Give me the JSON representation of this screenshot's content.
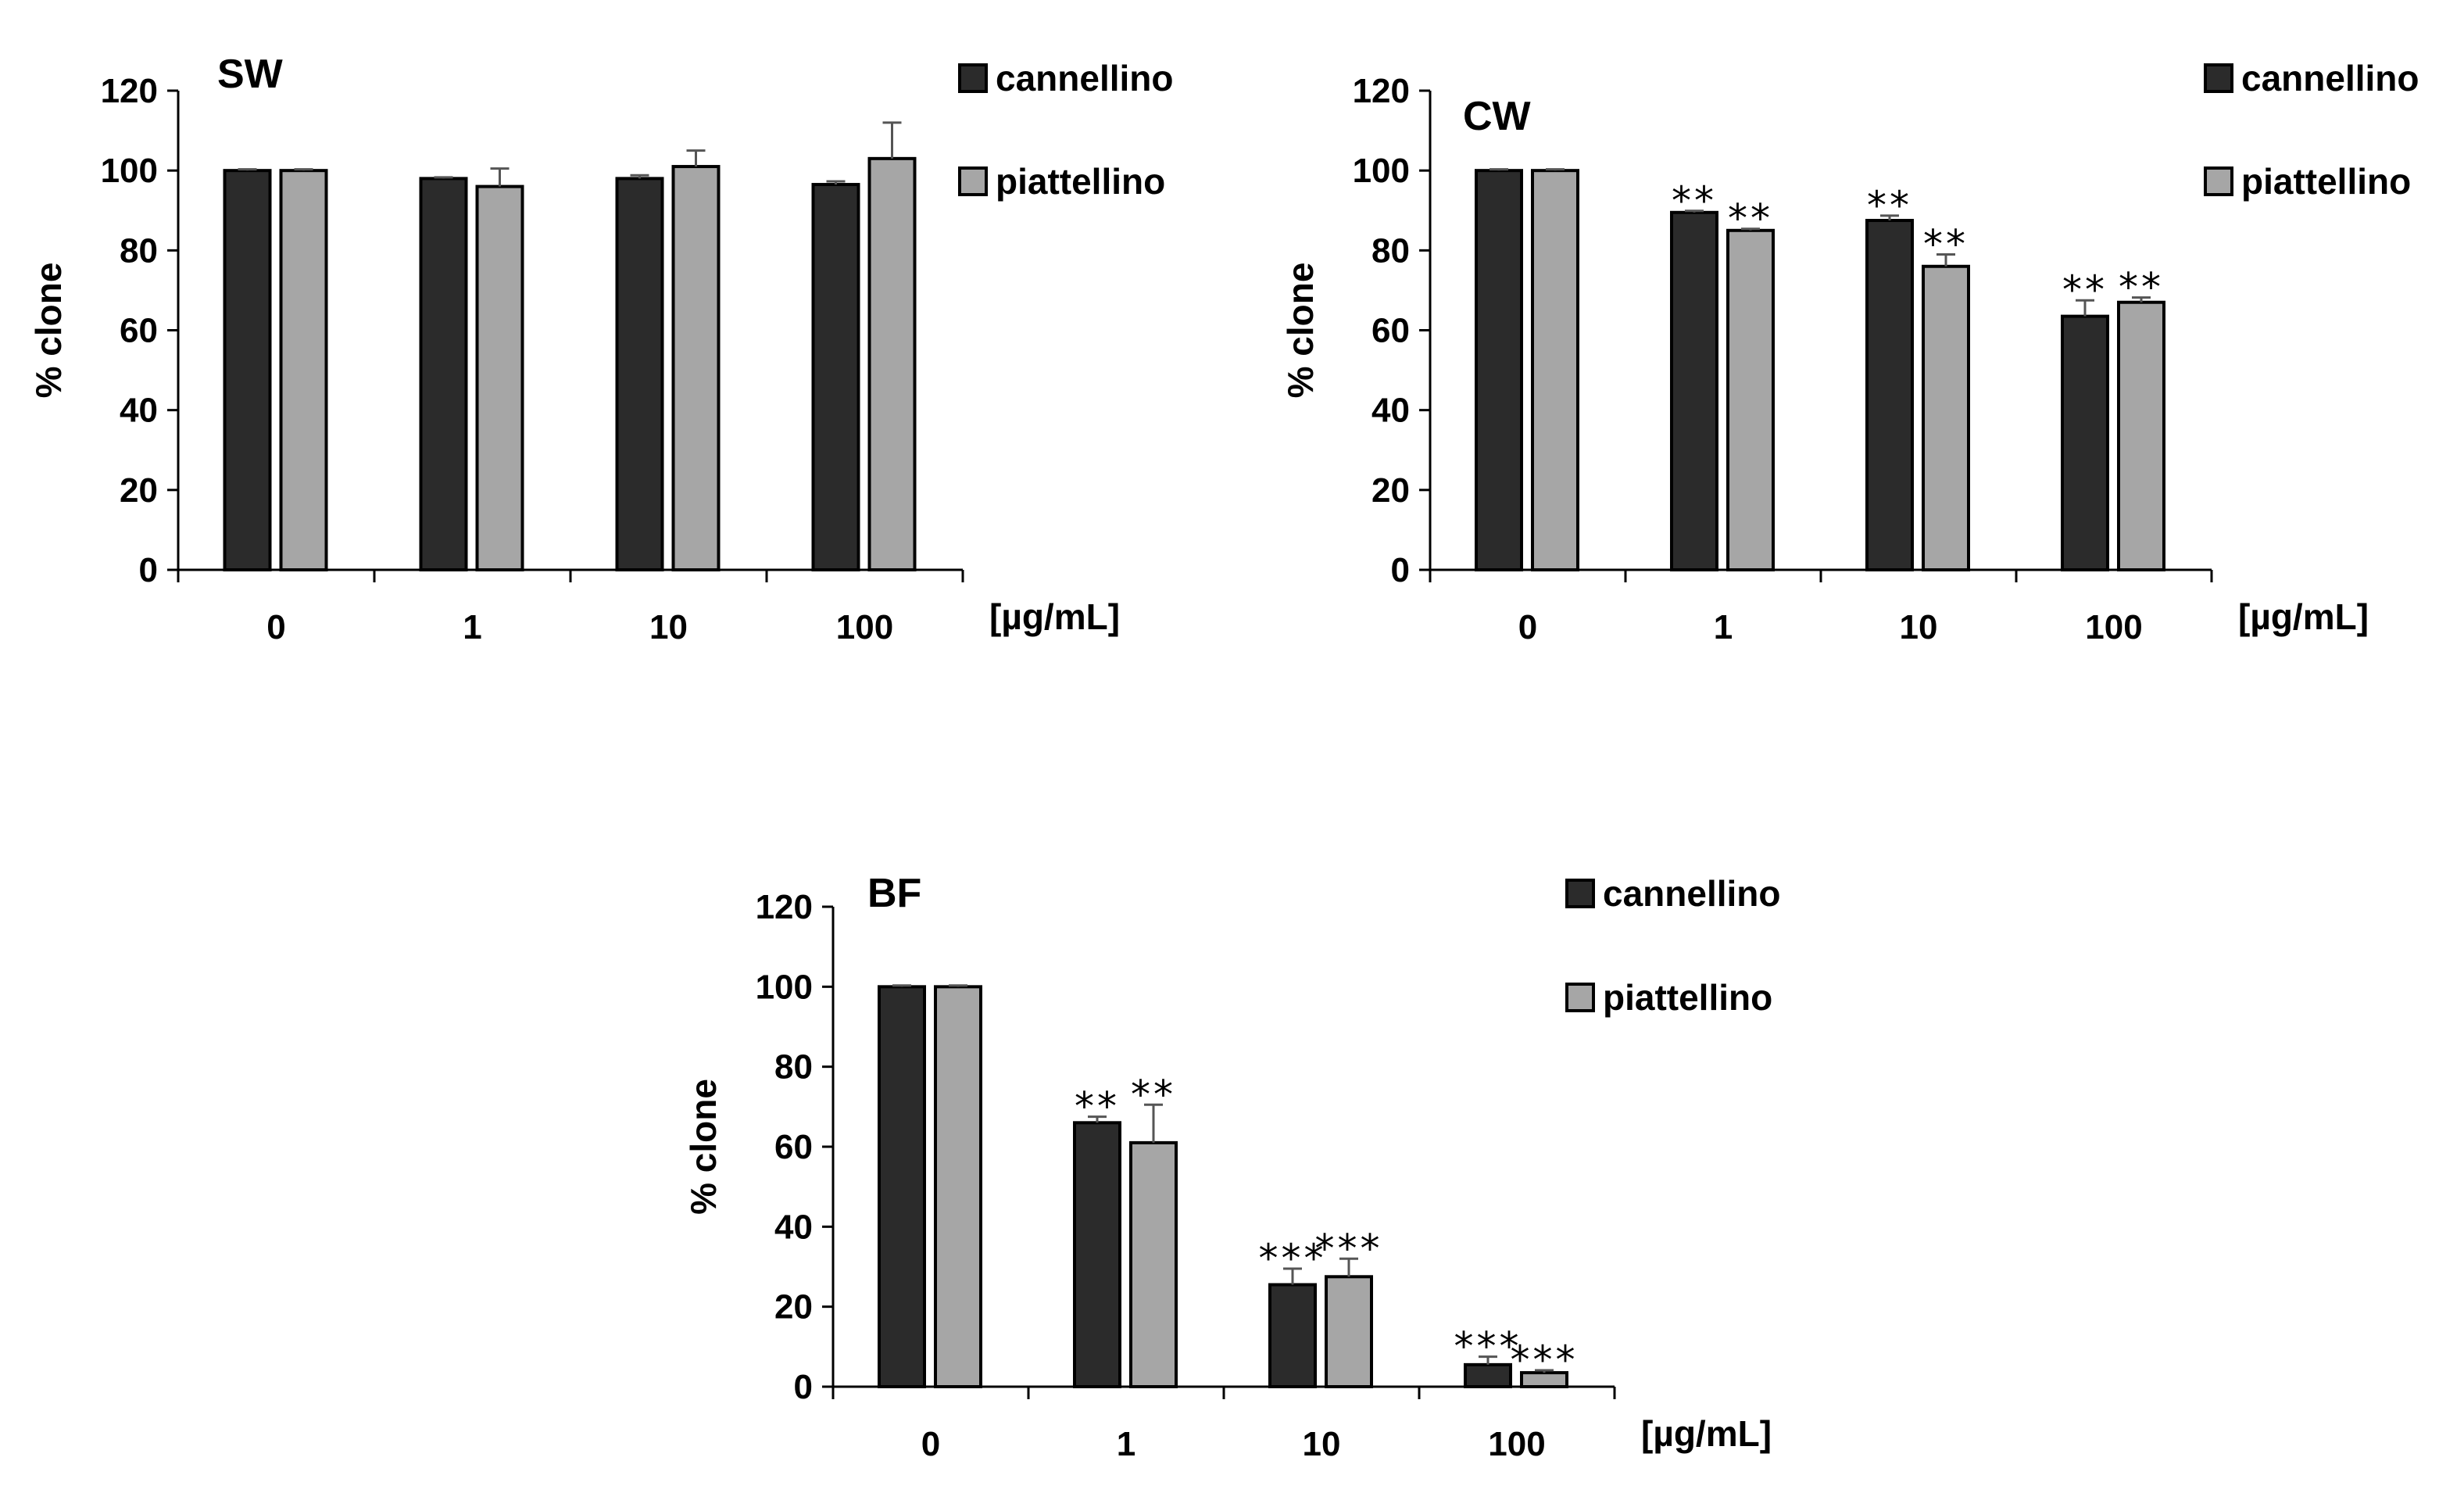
{
  "colors": {
    "cannellino": "#2b2b2b",
    "piattellino": "#a6a6a6",
    "axis": "#000000",
    "error_bar": "#555555"
  },
  "chart_data": [
    {
      "type": "bar",
      "title": "SW",
      "categories": [
        "0",
        "1",
        "10",
        "100"
      ],
      "unit_label": "[µg/mL]",
      "xlabel": "",
      "ylabel": "% clone",
      "ylim": [
        0,
        120
      ],
      "yticks": [
        "0",
        "20",
        "40",
        "60",
        "80",
        "100",
        "120"
      ],
      "legend_position": "top-right",
      "series": [
        {
          "name": "cannellino",
          "values": [
            100,
            98,
            98,
            96.5
          ],
          "errors": [
            0.3,
            0.3,
            0.8,
            0.8
          ],
          "sig": [
            "",
            "",
            "",
            ""
          ]
        },
        {
          "name": "piattellino",
          "values": [
            100,
            96,
            101,
            103
          ],
          "errors": [
            0.3,
            4.5,
            4,
            9
          ],
          "sig": [
            "",
            "",
            "",
            ""
          ]
        }
      ]
    },
    {
      "type": "bar",
      "title": "CW",
      "categories": [
        "0",
        "1",
        "10",
        "100"
      ],
      "unit_label": "[µg/mL]",
      "xlabel": "",
      "ylabel": "% clone",
      "ylim": [
        0,
        120
      ],
      "yticks": [
        "0",
        "20",
        "40",
        "60",
        "80",
        "100",
        "120"
      ],
      "legend_position": "top-right",
      "series": [
        {
          "name": "cannellino",
          "values": [
            100,
            89.5,
            87.5,
            63.5
          ],
          "errors": [
            0.3,
            0.4,
            1.2,
            4
          ],
          "sig": [
            "",
            "**",
            "**",
            "**"
          ]
        },
        {
          "name": "piattellino",
          "values": [
            100,
            85,
            76,
            67
          ],
          "errors": [
            0.3,
            0.4,
            3,
            1.2
          ],
          "sig": [
            "",
            "**",
            "**",
            "**"
          ]
        }
      ]
    },
    {
      "type": "bar",
      "title": "BF",
      "categories": [
        "0",
        "1",
        "10",
        "100"
      ],
      "unit_label": "[µg/mL]",
      "xlabel": "",
      "ylabel": "% clone",
      "ylim": [
        0,
        120
      ],
      "yticks": [
        "0",
        "20",
        "40",
        "60",
        "80",
        "100",
        "120"
      ],
      "legend_position": "top-right",
      "series": [
        {
          "name": "cannellino",
          "values": [
            100,
            66,
            25.5,
            5.5
          ],
          "errors": [
            0.3,
            1.5,
            4,
            2
          ],
          "sig": [
            "",
            "**",
            "***",
            "***"
          ]
        },
        {
          "name": "piattellino",
          "values": [
            100,
            61,
            27.5,
            3.5
          ],
          "errors": [
            0.3,
            9.5,
            4.5,
            0.6
          ],
          "sig": [
            "",
            "**",
            "***",
            "***"
          ]
        }
      ]
    }
  ]
}
